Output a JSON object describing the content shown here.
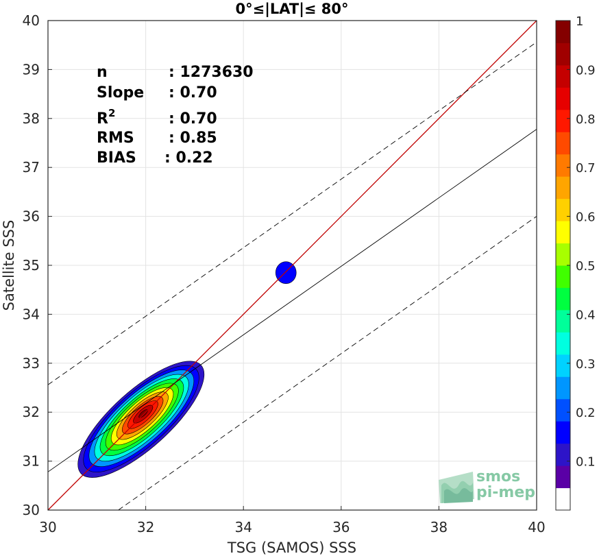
{
  "chart_data": {
    "type": "heatmap",
    "title": "0°≤|LAT|≤ 80°",
    "xlabel": "TSG (SAMOS) SSS",
    "ylabel": "Satellite SSS",
    "xlim": [
      30,
      40
    ],
    "ylim": [
      30,
      40
    ],
    "xticks": [
      30,
      32,
      34,
      36,
      38,
      40
    ],
    "yticks": [
      30,
      31,
      32,
      33,
      34,
      35,
      36,
      37,
      38,
      39,
      40
    ],
    "grid": true,
    "stats": [
      {
        "label": "n",
        "value": ": 1273630"
      },
      {
        "label": "Slope",
        "value": ": 0.70"
      },
      {
        "label": "R",
        "sup": "2",
        "value": ": 0.70"
      },
      {
        "label": "RMS",
        "value": ": 0.85"
      },
      {
        "label": "BIAS",
        "value": ": 0.22"
      }
    ],
    "lines": [
      {
        "kind": "one-to-one",
        "color": "#c00000",
        "style": "solid",
        "points": [
          [
            30,
            30
          ],
          [
            40,
            40
          ]
        ]
      },
      {
        "kind": "fit",
        "color": "#000000",
        "style": "solid",
        "points": [
          [
            30,
            30.78
          ],
          [
            40,
            37.78
          ]
        ]
      },
      {
        "kind": "upper-bound",
        "color": "#000000",
        "style": "dashed",
        "points": [
          [
            30,
            32.56
          ],
          [
            40,
            39.56
          ]
        ]
      },
      {
        "kind": "lower-bound",
        "color": "#000000",
        "style": "dashed",
        "points": [
          [
            31.44,
            30
          ],
          [
            40,
            36
          ]
        ]
      }
    ],
    "density_centers": [
      {
        "x": 31.95,
        "y": 31.97,
        "peak": 1.0
      },
      {
        "x": 34.87,
        "y": 34.85,
        "peak": 0.12
      }
    ],
    "colorbar": {
      "range": [
        0,
        1
      ],
      "ticks": [
        0.1,
        0.2,
        0.3,
        0.4,
        0.5,
        0.6,
        0.7,
        0.8,
        0.9,
        1
      ],
      "colors": [
        "#ffffff",
        "#5a00a6",
        "#2d14c8",
        "#0000ff",
        "#0050ff",
        "#0096ff",
        "#00d2ff",
        "#00ffe0",
        "#00ff9a",
        "#00ff40",
        "#40ff00",
        "#a8ff00",
        "#ffff00",
        "#ffd000",
        "#ffa500",
        "#ff7a00",
        "#ff4a00",
        "#ff1800",
        "#e60000",
        "#c40000",
        "#a00000",
        "#840000"
      ]
    }
  },
  "logo": {
    "line1": "smos",
    "line2": "pi-mep"
  }
}
